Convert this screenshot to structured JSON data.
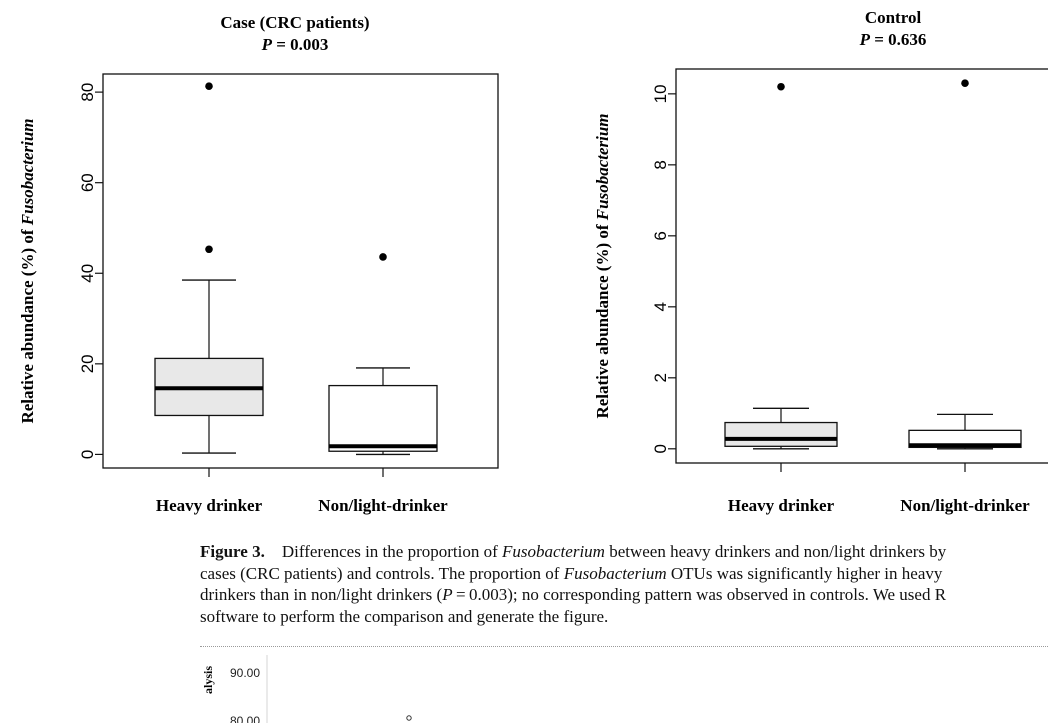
{
  "chart_data": [
    {
      "type": "box",
      "title": "Case (CRC patients)",
      "subtitle": {
        "prefix": "P",
        "text": " = 0.003"
      },
      "ylabel": {
        "plain": "Relative abundance (%) of ",
        "italic": "Fusobacterium"
      },
      "ylim": [
        -3,
        84
      ],
      "yticks": [
        0,
        20,
        40,
        60,
        80
      ],
      "categories": [
        "Heavy drinker",
        "Non/light-drinker"
      ],
      "boxes": [
        {
          "fill": "#e8e8e8",
          "whisker_low": 0.3,
          "q1": 8.6,
          "median": 14.6,
          "q3": 21.2,
          "whisker_high": 38.5,
          "outliers": [
            45.3,
            81.3
          ]
        },
        {
          "fill": "#ffffff",
          "whisker_low": 0.0,
          "q1": 0.7,
          "median": 1.8,
          "q3": 15.2,
          "whisker_high": 19.1,
          "outliers": [
            43.6
          ]
        }
      ]
    },
    {
      "type": "box",
      "title": "Control",
      "subtitle": {
        "prefix": "P",
        "text": " = 0.636"
      },
      "ylabel": {
        "plain": "Relative abundance (%) of ",
        "italic": "Fusobacterium"
      },
      "ylim": [
        -0.4,
        10.7
      ],
      "yticks": [
        0,
        2,
        4,
        6,
        8,
        10
      ],
      "categories": [
        "Heavy drinker",
        "Non/light-drinker"
      ],
      "boxes": [
        {
          "fill": "#e8e8e8",
          "whisker_low": 0.0,
          "q1": 0.07,
          "median": 0.28,
          "q3": 0.74,
          "whisker_high": 1.14,
          "outliers": [
            10.2
          ]
        },
        {
          "fill": "#ffffff",
          "whisker_low": 0.0,
          "q1": 0.04,
          "median": 0.1,
          "q3": 0.52,
          "whisker_high": 0.97,
          "outliers": [
            10.3
          ]
        }
      ]
    },
    {
      "type": "scatter",
      "ylabel_fragment": "alysis",
      "yticks": [
        "90.00",
        "80.00"
      ]
    }
  ],
  "caption": {
    "label": "Figure 3.",
    "line1": [
      {
        "t": "Differences in the proportion of "
      },
      {
        "t": "Fusobacterium",
        "i": true
      },
      {
        "t": " between heavy drinkers and non/light drinkers by"
      }
    ],
    "line2": [
      {
        "t": "cases (CRC patients) and controls. The proportion of "
      },
      {
        "t": "Fusobacterium",
        "i": true
      },
      {
        "t": " OTUs was significantly higher in heavy"
      }
    ],
    "line3": [
      {
        "t": "drinkers than in non/light drinkers ("
      },
      {
        "t": "P",
        "i": true
      },
      {
        "t": " = 0.003); no corresponding pattern was observed in controls. We used R"
      }
    ],
    "line4": [
      {
        "t": "software to perform the comparison and generate the figure."
      }
    ]
  }
}
